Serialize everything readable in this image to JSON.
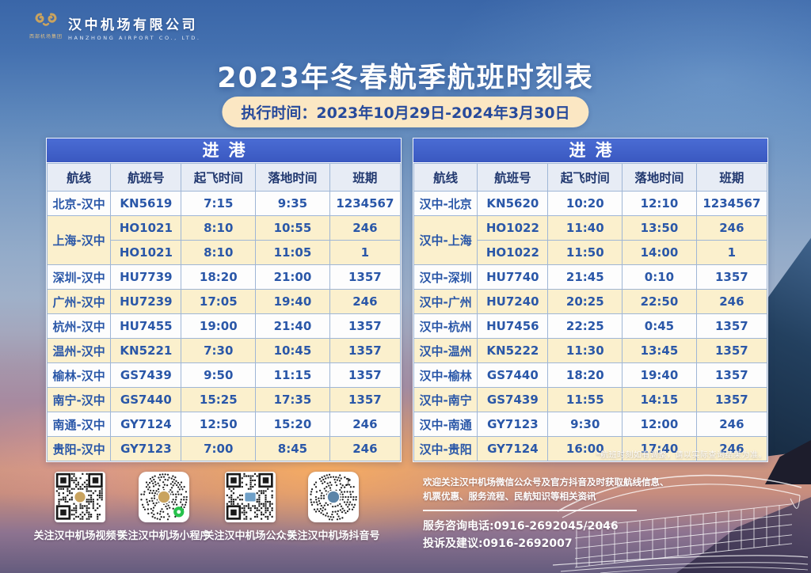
{
  "brand": {
    "company_cn": "汉中机场有限公司",
    "company_en": "HANZHONG AIRPORT CO., LTD.",
    "emblem_caption": "西部机场集团"
  },
  "title": "2023年冬春航季航班时刻表",
  "validity_label": "执行时间：2023年10月29日-2024年3月30日",
  "tables": [
    {
      "section_title": "进港",
      "columns": [
        "航线",
        "航班号",
        "起飞时间",
        "落地时间",
        "班期"
      ],
      "rows": [
        {
          "route": "北京-汉中",
          "flight": "KN5619",
          "dep": "7:15",
          "arr": "9:35",
          "days": "1234567",
          "tint": "white"
        },
        {
          "route": "上海-汉中",
          "route_span": 2,
          "flight": "HO1021",
          "dep": "8:10",
          "arr": "10:55",
          "days": "246",
          "tint": "cream"
        },
        {
          "route": null,
          "flight": "HO1021",
          "dep": "8:10",
          "arr": "11:05",
          "days": "1",
          "tint": "cream"
        },
        {
          "route": "深圳-汉中",
          "flight": "HU7739",
          "dep": "18:20",
          "arr": "21:00",
          "days": "1357",
          "tint": "white"
        },
        {
          "route": "广州-汉中",
          "flight": "HU7239",
          "dep": "17:05",
          "arr": "19:40",
          "days": "246",
          "tint": "cream"
        },
        {
          "route": "杭州-汉中",
          "flight": "HU7455",
          "dep": "19:00",
          "arr": "21:40",
          "days": "1357",
          "tint": "white"
        },
        {
          "route": "温州-汉中",
          "flight": "KN5221",
          "dep": "7:30",
          "arr": "10:45",
          "days": "1357",
          "tint": "cream"
        },
        {
          "route": "榆林-汉中",
          "flight": "GS7439",
          "dep": "9:50",
          "arr": "11:15",
          "days": "1357",
          "tint": "white"
        },
        {
          "route": "南宁-汉中",
          "flight": "GS7440",
          "dep": "15:25",
          "arr": "17:35",
          "days": "1357",
          "tint": "cream"
        },
        {
          "route": "南通-汉中",
          "flight": "GY7124",
          "dep": "12:50",
          "arr": "15:20",
          "days": "246",
          "tint": "white"
        },
        {
          "route": "贵阳-汉中",
          "flight": "GY7123",
          "dep": "7:00",
          "arr": "8:45",
          "days": "246",
          "tint": "cream"
        }
      ]
    },
    {
      "section_title": "进港",
      "columns": [
        "航线",
        "航班号",
        "起飞时间",
        "落地时间",
        "班期"
      ],
      "rows": [
        {
          "route": "汉中-北京",
          "flight": "KN5620",
          "dep": "10:20",
          "arr": "12:10",
          "days": "1234567",
          "tint": "white"
        },
        {
          "route": "汉中-上海",
          "route_span": 2,
          "flight": "HO1022",
          "dep": "11:40",
          "arr": "13:50",
          "days": "246",
          "tint": "cream"
        },
        {
          "route": null,
          "flight": "HO1022",
          "dep": "11:50",
          "arr": "14:00",
          "days": "1",
          "tint": "cream"
        },
        {
          "route": "汉中-深圳",
          "flight": "HU7740",
          "dep": "21:45",
          "arr": "0:10",
          "days": "1357",
          "tint": "white"
        },
        {
          "route": "汉中-广州",
          "flight": "HU7240",
          "dep": "20:25",
          "arr": "22:50",
          "days": "246",
          "tint": "cream"
        },
        {
          "route": "汉中-杭州",
          "flight": "HU7456",
          "dep": "22:25",
          "arr": "0:45",
          "days": "1357",
          "tint": "white"
        },
        {
          "route": "汉中-温州",
          "flight": "KN5222",
          "dep": "11:30",
          "arr": "13:45",
          "days": "1357",
          "tint": "cream"
        },
        {
          "route": "汉中-榆林",
          "flight": "GS7440",
          "dep": "18:20",
          "arr": "19:40",
          "days": "1357",
          "tint": "white"
        },
        {
          "route": "汉中-南宁",
          "flight": "GS7439",
          "dep": "11:55",
          "arr": "14:15",
          "days": "1357",
          "tint": "cream"
        },
        {
          "route": "汉中-南通",
          "flight": "GY7123",
          "dep": "9:30",
          "arr": "12:00",
          "days": "246",
          "tint": "white"
        },
        {
          "route": "汉中-贵阳",
          "flight": "GY7124",
          "dep": "16:00",
          "arr": "17:40",
          "days": "246",
          "tint": "cream"
        }
      ]
    }
  ],
  "footnote": "*航班时刻如有调整，请以实际查询结果为准。",
  "qr_items": [
    {
      "label": "关注汉中机场视频号",
      "style": "square",
      "center": "#c9a35f",
      "badge": "none"
    },
    {
      "label": "关注汉中机场小程序",
      "style": "round",
      "center": "#c9a35f",
      "badge": "green"
    },
    {
      "label": "关注汉中机场公众号",
      "style": "square",
      "center": "#6fa0c8",
      "badge": "none"
    },
    {
      "label": "关注汉中机场抖音号",
      "style": "round",
      "center": "#5b84a8",
      "badge": "note"
    }
  ],
  "contact": {
    "intro": "欢迎关注汉中机场微信公众号及官方抖音及时获取航线信息、机票优惠、服务流程、民航知识等相关资讯",
    "service_line": "服务咨询电话:0916-2692045/2046",
    "complaint_line": "投诉及建议:0916-2692007"
  },
  "colors": {
    "banner_blue": "#3f60c6",
    "header_bg": "#e7ecf5",
    "header_text": "#21386f",
    "cell_text": "#2a57a8",
    "cream_row": "#fbf0cd",
    "pill_bg": "#fbe7c3",
    "pill_text": "#274a9b",
    "emblem_gold": "#c9a35f"
  }
}
